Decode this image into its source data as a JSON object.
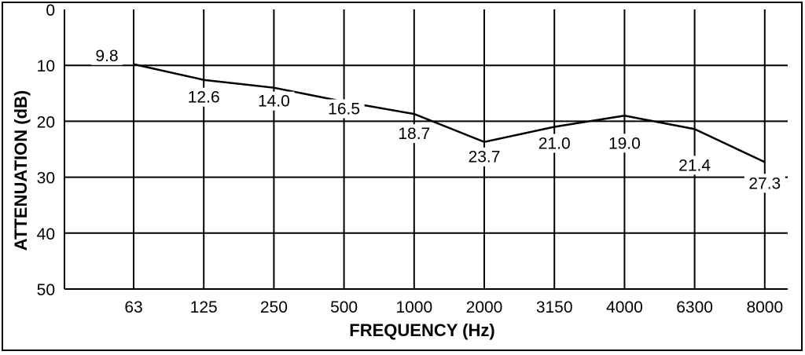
{
  "chart_data": {
    "type": "line",
    "title": "",
    "xlabel": "FREQUENCY (Hz)",
    "ylabel": "ATTENUATION (dB)",
    "categories": [
      "63",
      "125",
      "250",
      "500",
      "1000",
      "2000",
      "3150",
      "4000",
      "6300",
      "8000"
    ],
    "values": [
      9.8,
      12.6,
      14.0,
      16.5,
      18.7,
      23.7,
      21.0,
      19.0,
      21.4,
      27.3
    ],
    "ylim": [
      0,
      50
    ],
    "y_inverted": true,
    "y_ticks": [
      "0",
      "10",
      "20",
      "30",
      "40",
      "50"
    ],
    "grid": true,
    "line_color": "#000000"
  }
}
